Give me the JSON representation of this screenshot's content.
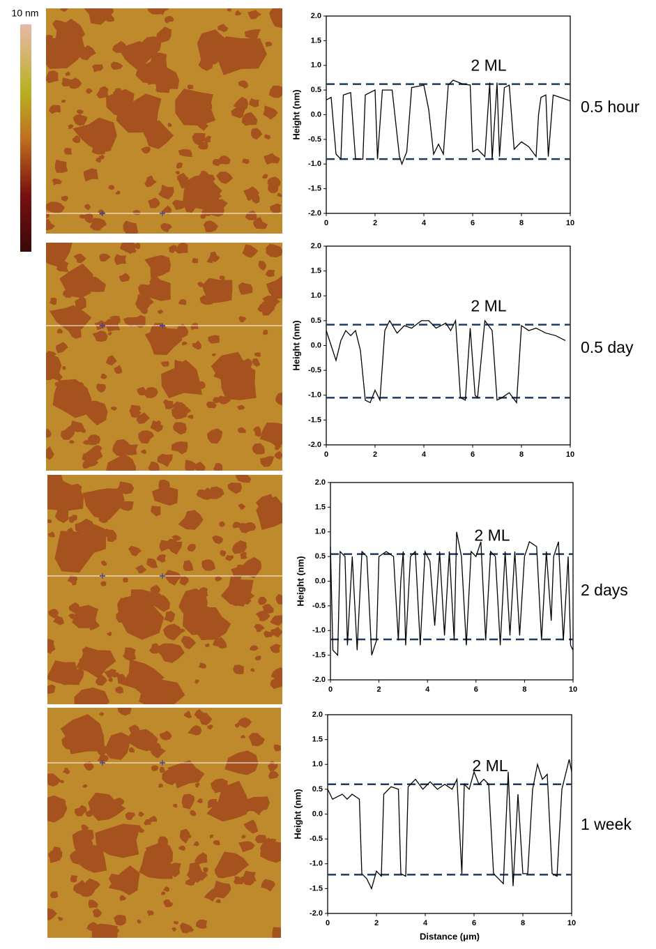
{
  "colorbar": {
    "label": "10 nm"
  },
  "chart_data": [
    {
      "type": "line",
      "ylabel": "Height (nm)",
      "annotation": "2 ML",
      "label": "0.5 hour",
      "color": "#000000",
      "hlines": [
        0.62,
        -0.9
      ],
      "hline_color": "#1f3a5f",
      "xlim": [
        0,
        10
      ],
      "ylim": [
        -2,
        2
      ],
      "xticks": [
        0,
        2,
        4,
        6,
        8,
        10
      ],
      "yticks": [
        {
          "value": -2,
          "label": "-2.0"
        },
        -1.5,
        {
          "value": -1,
          "label": "-1.0"
        },
        -0.5,
        {
          "value": 0,
          "label": "0.0"
        },
        0.5,
        {
          "value": 1,
          "label": "1.0"
        },
        1.5,
        {
          "value": 2,
          "label": "2.0"
        }
      ],
      "x": [
        0,
        0.2,
        0.4,
        0.6,
        0.7,
        1.0,
        1.2,
        1.5,
        1.6,
        2.0,
        2.1,
        2.3,
        2.7,
        3.0,
        3.1,
        3.3,
        3.5,
        4.0,
        4.2,
        4.4,
        4.6,
        4.8,
        5.0,
        5.2,
        5.6,
        5.9,
        6.0,
        6.2,
        6.5,
        6.7,
        6.8,
        7.0,
        7.1,
        7.3,
        7.5,
        7.7,
        8.0,
        8.3,
        8.6,
        8.7,
        8.8,
        9.0,
        9.1,
        9.3,
        9.6,
        10
      ],
      "values": [
        0.3,
        0.35,
        -0.8,
        -0.9,
        0.4,
        0.45,
        -0.9,
        -0.9,
        0.4,
        0.5,
        -0.9,
        0.5,
        0.5,
        -0.85,
        -1.0,
        -0.75,
        0.55,
        0.6,
        0.1,
        -0.8,
        -0.6,
        -0.8,
        0.6,
        0.7,
        0.62,
        0.6,
        -0.75,
        -0.7,
        -0.85,
        0.65,
        -0.9,
        0.65,
        -0.85,
        0.55,
        0.6,
        -0.7,
        -0.55,
        -0.65,
        -0.85,
        0.0,
        0.35,
        0.4,
        -0.85,
        0.4,
        0.35,
        0.28
      ]
    },
    {
      "type": "line",
      "ylabel": "Height (nm)",
      "annotation": "2 ML",
      "label": "0.5 day",
      "color": "#000000",
      "hlines": [
        0.42,
        -1.05
      ],
      "hline_color": "#1f3a5f",
      "xlim": [
        0,
        10
      ],
      "ylim": [
        -2,
        2
      ],
      "xticks": [
        0,
        2,
        4,
        6,
        8,
        10
      ],
      "yticks": [
        {
          "value": -2,
          "label": "-2.0"
        },
        -1.5,
        {
          "value": -1,
          "label": "-1.0"
        },
        -0.5,
        {
          "value": 0,
          "label": "0.0"
        },
        0.5,
        {
          "value": 1,
          "label": "1.0"
        },
        1.5,
        {
          "value": 2,
          "label": "2.0"
        }
      ],
      "x": [
        0,
        0.2,
        0.4,
        0.6,
        0.8,
        1.0,
        1.2,
        1.4,
        1.6,
        1.8,
        2.0,
        2.2,
        2.4,
        2.6,
        2.9,
        3.2,
        3.5,
        3.9,
        4.2,
        4.5,
        4.9,
        5.1,
        5.3,
        5.5,
        5.7,
        5.9,
        6.1,
        6.2,
        6.5,
        6.8,
        7.0,
        7.2,
        7.5,
        7.8,
        8.0,
        8.3,
        8.6,
        9.0,
        9.4,
        9.8
      ],
      "values": [
        0.3,
        0.0,
        -0.3,
        0.1,
        0.3,
        0.2,
        0.3,
        -0.1,
        -1.1,
        -1.15,
        -0.9,
        -1.1,
        0.3,
        0.5,
        0.25,
        0.4,
        0.35,
        0.5,
        0.5,
        0.35,
        0.45,
        0.3,
        0.5,
        -1.05,
        -1.1,
        0.35,
        -1.0,
        -1.05,
        0.5,
        0.3,
        -1.1,
        -1.05,
        -0.95,
        -1.15,
        0.4,
        0.3,
        0.35,
        0.25,
        0.2,
        0.1
      ]
    },
    {
      "type": "line",
      "ylabel": "Height (nm)",
      "annotation": "2 ML",
      "label": "2 days",
      "color": "#000000",
      "hlines": [
        0.55,
        -1.18
      ],
      "hline_color": "#1f3a5f",
      "xlim": [
        0,
        10
      ],
      "ylim": [
        -2,
        2
      ],
      "xticks": [
        0,
        2,
        4,
        6,
        8,
        10
      ],
      "yticks": [
        {
          "value": -2,
          "label": "-2.0"
        },
        -1.5,
        {
          "value": -1,
          "label": "-1.0"
        },
        -0.5,
        {
          "value": 0,
          "label": "0.0"
        },
        0.5,
        {
          "value": 1,
          "label": "1.0"
        },
        1.5,
        {
          "value": 2,
          "label": "2.0"
        }
      ],
      "x": [
        0,
        0.1,
        0.3,
        0.4,
        0.6,
        0.7,
        0.9,
        1.1,
        1.3,
        1.5,
        1.7,
        1.9,
        2.0,
        2.3,
        2.6,
        2.8,
        2.9,
        3.0,
        3.1,
        3.3,
        3.5,
        3.7,
        3.9,
        4.1,
        4.3,
        4.5,
        4.7,
        4.9,
        5.1,
        5.2,
        5.4,
        5.6,
        5.8,
        6.0,
        6.2,
        6.4,
        6.6,
        6.8,
        7.0,
        7.2,
        7.4,
        7.6,
        7.8,
        8.0,
        8.2,
        8.5,
        8.7,
        8.9,
        9.1,
        9.2,
        9.4,
        9.6,
        9.8,
        9.9,
        10
      ],
      "values": [
        0.7,
        -1.4,
        -1.5,
        0.6,
        0.5,
        -1.3,
        0.5,
        -1.4,
        0.6,
        0.5,
        -1.5,
        -1.2,
        0.5,
        0.6,
        0.5,
        -1.2,
        0.0,
        0.6,
        -1.3,
        0.5,
        0.6,
        -1.3,
        0.6,
        0.4,
        -0.9,
        0.6,
        -1.1,
        0.6,
        -1.2,
        1.0,
        0.5,
        -1.3,
        0.6,
        0.5,
        0.8,
        -1.2,
        0.6,
        0.5,
        -1.3,
        0.6,
        -1.1,
        0.6,
        -1.1,
        0.5,
        0.8,
        0.7,
        -1.2,
        0.6,
        -0.8,
        0.5,
        0.8,
        -1.2,
        0.5,
        -1.3,
        -1.4
      ]
    },
    {
      "type": "line",
      "ylabel": "Height (nm)",
      "xlabel": "Distance (μm)",
      "annotation": "2 ML",
      "label": "1 week",
      "color": "#000000",
      "hlines": [
        0.6,
        -1.22
      ],
      "hline_color": "#1f3a5f",
      "xlim": [
        0,
        10
      ],
      "ylim": [
        -2,
        2
      ],
      "xticks": [
        0,
        2,
        4,
        6,
        8,
        10
      ],
      "yticks": [
        {
          "value": -2,
          "label": "-2.0"
        },
        -1.5,
        {
          "value": -1,
          "label": "-1.0"
        },
        -0.5,
        {
          "value": 0,
          "label": "0.0"
        },
        0.5,
        {
          "value": 1,
          "label": "1.0"
        },
        1.5,
        {
          "value": 2,
          "label": "2.0"
        }
      ],
      "x": [
        0,
        0.2,
        0.4,
        0.6,
        0.8,
        1.0,
        1.3,
        1.4,
        1.6,
        1.8,
        2.0,
        2.2,
        2.3,
        2.6,
        2.9,
        3.0,
        3.2,
        3.3,
        3.6,
        3.9,
        4.2,
        4.5,
        4.8,
        5.1,
        5.3,
        5.5,
        5.6,
        5.8,
        6.0,
        6.2,
        6.4,
        6.6,
        6.8,
        7.0,
        7.2,
        7.4,
        7.6,
        7.8,
        8.0,
        8.2,
        8.4,
        8.6,
        8.8,
        9.0,
        9.2,
        9.4,
        9.6,
        9.9,
        10
      ],
      "values": [
        0.5,
        0.3,
        0.35,
        0.4,
        0.3,
        0.4,
        0.3,
        -1.2,
        -1.3,
        -1.5,
        -1.15,
        -1.25,
        0.4,
        0.55,
        0.5,
        -1.2,
        -1.25,
        0.55,
        0.7,
        0.5,
        0.65,
        0.5,
        0.6,
        0.5,
        0.7,
        -1.2,
        0.6,
        0.5,
        0.85,
        0.6,
        0.7,
        0.6,
        -1.2,
        -1.3,
        -1.4,
        0.85,
        -1.45,
        0.4,
        -1.2,
        -1.2,
        0.5,
        1.0,
        0.7,
        0.8,
        -1.2,
        -1.25,
        0.5,
        1.1,
        0.85
      ]
    }
  ]
}
